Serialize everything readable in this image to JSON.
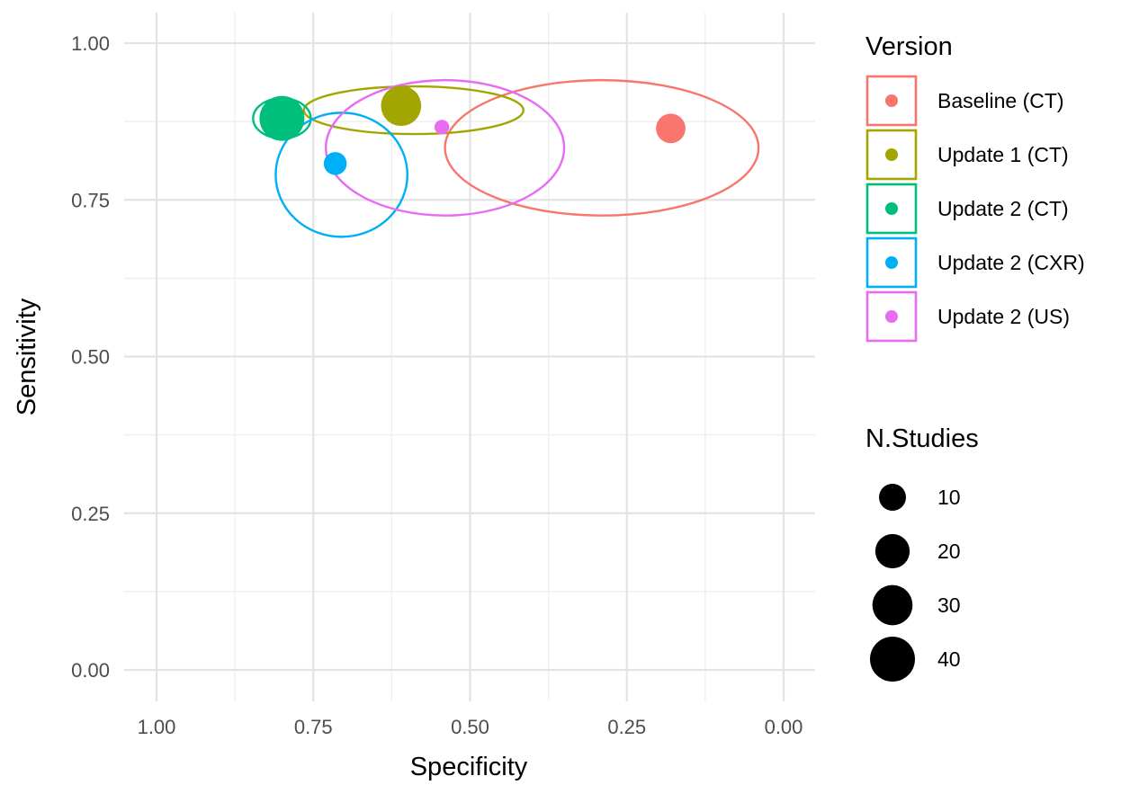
{
  "chart_data": {
    "type": "scatter",
    "title": "",
    "xlabel": "Specificity",
    "ylabel": "Sensitivity",
    "x_reversed": true,
    "xlim": [
      1.0,
      0.0
    ],
    "ylim": [
      0.0,
      1.0
    ],
    "x_ticks": [
      "1.00",
      "0.75",
      "0.50",
      "0.25",
      "0.00"
    ],
    "y_ticks": [
      "0.00",
      "0.25",
      "0.50",
      "0.75",
      "1.00"
    ],
    "grid": true,
    "legend_position": "right",
    "legend": {
      "color_title": "Version",
      "size_title": "N.Studies",
      "size_entries": [
        "10",
        "20",
        "30",
        "40"
      ]
    },
    "series": [
      {
        "name": "Baseline (CT)",
        "color": "#F8766D",
        "point": {
          "specificity": 0.18,
          "sensitivity": 0.864,
          "n_studies": 13
        },
        "ellipse": {
          "specificity_center": 0.29,
          "sensitivity_center": 0.833,
          "specificity_halfwidth": 0.25,
          "sensitivity_halfheight": 0.108
        }
      },
      {
        "name": "Update 1 (CT)",
        "color": "#A3A500",
        "point": {
          "specificity": 0.61,
          "sensitivity": 0.9,
          "n_studies": 30
        },
        "ellipse": {
          "specificity_center": 0.59,
          "sensitivity_center": 0.893,
          "specificity_halfwidth": 0.175,
          "sensitivity_halfheight": 0.038
        }
      },
      {
        "name": "Update 2 (CT)",
        "color": "#00BF7D",
        "point": {
          "specificity": 0.8,
          "sensitivity": 0.88,
          "n_studies": 40
        },
        "ellipse": {
          "specificity_center": 0.8,
          "sensitivity_center": 0.88,
          "specificity_halfwidth": 0.046,
          "sensitivity_halfheight": 0.032
        }
      },
      {
        "name": "Update 2 (CXR)",
        "color": "#00B0F6",
        "point": {
          "specificity": 0.715,
          "sensitivity": 0.808,
          "n_studies": 6
        },
        "ellipse": {
          "specificity_center": 0.705,
          "sensitivity_center": 0.79,
          "specificity_halfwidth": 0.105,
          "sensitivity_halfheight": 0.099
        }
      },
      {
        "name": "Update 2 (US)",
        "color": "#E76BF3",
        "point": {
          "specificity": 0.545,
          "sensitivity": 0.866,
          "n_studies": 1
        },
        "ellipse": {
          "specificity_center": 0.54,
          "sensitivity_center": 0.833,
          "specificity_halfwidth": 0.19,
          "sensitivity_halfheight": 0.108
        }
      }
    ]
  }
}
